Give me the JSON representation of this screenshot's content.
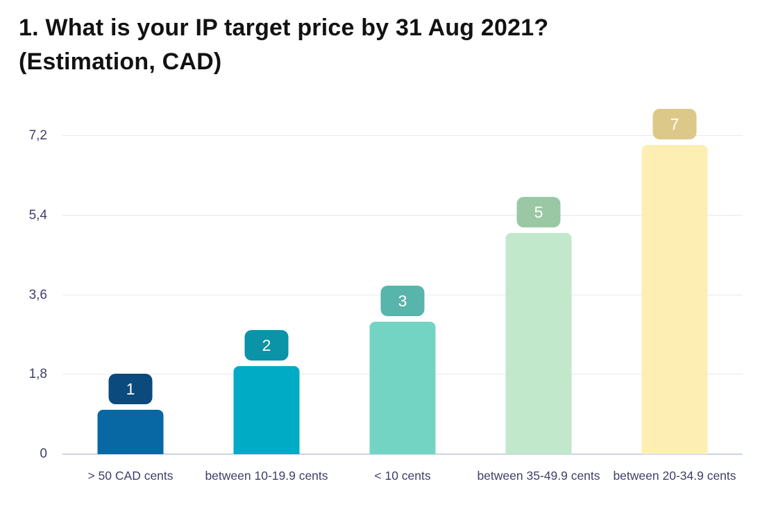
{
  "title": {
    "full": "1. What is your IP target price by 31 Aug 2021? (Estimation, CAD)",
    "lines": [
      "1. What is your IP target price by 31 Aug 2021?",
      "(Estimation, CAD)"
    ]
  },
  "chart_data": {
    "type": "bar",
    "title": "1. What is your IP target price by 31 Aug 2021? (Estimation, CAD)",
    "categories": [
      "> 50 CAD cents",
      "between 10-19.9 cents",
      "< 10 cents",
      "between 35-49.9 cents",
      "between 20-34.9 cents"
    ],
    "values": [
      1,
      2,
      3,
      5,
      7
    ],
    "value_labels": [
      "1",
      "2",
      "3",
      "5",
      "7"
    ],
    "y_ticks": [
      "0",
      "1,8",
      "3,6",
      "5,4",
      "7,2"
    ],
    "y_tick_values": [
      0,
      1.8,
      3.6,
      5.4,
      7.2
    ],
    "ylim": [
      0,
      7.2
    ],
    "xlabel": "",
    "ylabel": "",
    "grid": true,
    "legend": false,
    "bar_colors": [
      "#0768a4",
      "#00abc6",
      "#74d4c4",
      "#c2e8cb",
      "#fdeeb4"
    ],
    "badge_colors": [
      "#0b4a7c",
      "#0b93a8",
      "#57b5ab",
      "#9bc8a4",
      "#dcc98a"
    ]
  },
  "colors": {
    "background": "#ffffff",
    "title_text": "#121212",
    "axis_text": "#3e3e68",
    "gridline": "#e9e9ef",
    "baseline": "#c9d3e8",
    "badge_text": "#ffffff"
  }
}
